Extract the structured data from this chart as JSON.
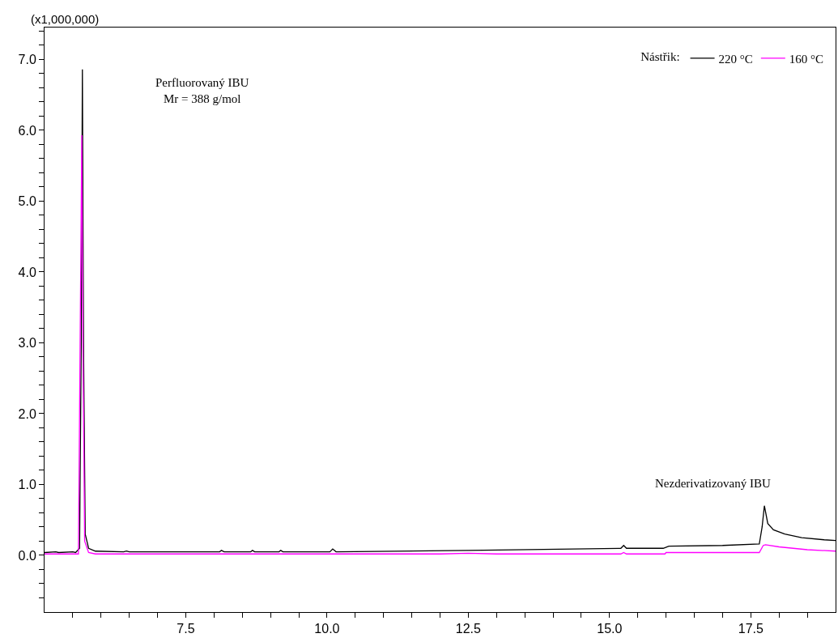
{
  "chart_data": {
    "type": "line",
    "xlim": [
      5.0,
      19.0
    ],
    "xticks": [
      {
        "value": 5.5,
        "label": null
      },
      {
        "value": 6.0,
        "label": null
      },
      {
        "value": 6.5,
        "label": null
      },
      {
        "value": 7.0,
        "label": null
      },
      {
        "value": 7.5,
        "label": "7.5"
      },
      {
        "value": 8.0,
        "label": null
      },
      {
        "value": 8.5,
        "label": null
      },
      {
        "value": 9.0,
        "label": null
      },
      {
        "value": 9.5,
        "label": null
      },
      {
        "value": 10.0,
        "label": "10.0"
      },
      {
        "value": 10.5,
        "label": null
      },
      {
        "value": 11.0,
        "label": null
      },
      {
        "value": 11.5,
        "label": null
      },
      {
        "value": 12.0,
        "label": null
      },
      {
        "value": 12.5,
        "label": "12.5"
      },
      {
        "value": 13.0,
        "label": null
      },
      {
        "value": 13.5,
        "label": null
      },
      {
        "value": 14.0,
        "label": null
      },
      {
        "value": 14.5,
        "label": null
      },
      {
        "value": 15.0,
        "label": "15.0"
      },
      {
        "value": 15.5,
        "label": null
      },
      {
        "value": 16.0,
        "label": null
      },
      {
        "value": 16.5,
        "label": null
      },
      {
        "value": 17.0,
        "label": null
      },
      {
        "value": 17.5,
        "label": "17.5"
      },
      {
        "value": 18.0,
        "label": null
      },
      {
        "value": 18.5,
        "label": null
      }
    ],
    "ylim": [
      -0.8,
      7.45
    ],
    "yticks": [
      {
        "value": -0.6,
        "label": null
      },
      {
        "value": -0.4,
        "label": null
      },
      {
        "value": -0.2,
        "label": null
      },
      {
        "value": 0,
        "label": "0.0"
      },
      {
        "value": 0.2,
        "label": null
      },
      {
        "value": 0.4,
        "label": null
      },
      {
        "value": 0.6,
        "label": null
      },
      {
        "value": 0.8,
        "label": null
      },
      {
        "value": 1,
        "label": "1.0"
      },
      {
        "value": 1.2,
        "label": null
      },
      {
        "value": 1.4,
        "label": null
      },
      {
        "value": 1.6,
        "label": null
      },
      {
        "value": 1.8,
        "label": null
      },
      {
        "value": 2,
        "label": "2.0"
      },
      {
        "value": 2.2,
        "label": null
      },
      {
        "value": 2.4,
        "label": null
      },
      {
        "value": 2.6,
        "label": null
      },
      {
        "value": 2.8,
        "label": null
      },
      {
        "value": 3,
        "label": "3.0"
      },
      {
        "value": 3.2,
        "label": null
      },
      {
        "value": 3.4,
        "label": null
      },
      {
        "value": 3.6,
        "label": null
      },
      {
        "value": 3.8,
        "label": null
      },
      {
        "value": 4,
        "label": "4.0"
      },
      {
        "value": 4.2,
        "label": null
      },
      {
        "value": 4.4,
        "label": null
      },
      {
        "value": 4.6,
        "label": null
      },
      {
        "value": 4.8,
        "label": null
      },
      {
        "value": 5,
        "label": "5.0"
      },
      {
        "value": 5.2,
        "label": null
      },
      {
        "value": 5.4,
        "label": null
      },
      {
        "value": 5.6,
        "label": null
      },
      {
        "value": 5.8,
        "label": null
      },
      {
        "value": 6,
        "label": "6.0"
      },
      {
        "value": 6.2,
        "label": null
      },
      {
        "value": 6.4,
        "label": null
      },
      {
        "value": 6.6,
        "label": null
      },
      {
        "value": 6.8,
        "label": null
      },
      {
        "value": 7,
        "label": "7.0"
      },
      {
        "value": 7.2,
        "label": null
      },
      {
        "value": 7.4,
        "label": null
      }
    ],
    "grid": false,
    "legend": "top right",
    "legend_title": "Nástřik:",
    "line_style": "solid",
    "marker": "none",
    "annotations": [
      "(x1,000,000)",
      "Perfluorovaný IBU\nMr = 388 g/mol",
      "Nezderivatizovaný IBU"
    ],
    "series": [
      {
        "name": "220 °C",
        "color": "#000000",
        "x": [
          5.0,
          5.2,
          5.25,
          5.5,
          5.55,
          5.62,
          5.65,
          5.67,
          5.69,
          5.72,
          5.78,
          5.9,
          6.4,
          6.45,
          6.5,
          8.1,
          8.13,
          8.18,
          8.65,
          8.68,
          8.72,
          9.15,
          9.18,
          9.22,
          10.05,
          10.1,
          10.16,
          12.5,
          15.2,
          15.25,
          15.3,
          15.95,
          16.05,
          17.0,
          17.65,
          17.7,
          17.74,
          17.8,
          17.9,
          18.1,
          18.4,
          18.8,
          19.0
        ],
        "values": [
          0.04,
          0.05,
          0.04,
          0.05,
          0.04,
          0.1,
          3.0,
          6.86,
          3.0,
          0.3,
          0.1,
          0.06,
          0.05,
          0.06,
          0.05,
          0.05,
          0.07,
          0.05,
          0.05,
          0.07,
          0.05,
          0.05,
          0.07,
          0.05,
          0.05,
          0.09,
          0.05,
          0.07,
          0.1,
          0.14,
          0.1,
          0.1,
          0.13,
          0.14,
          0.16,
          0.4,
          0.7,
          0.45,
          0.36,
          0.3,
          0.25,
          0.22,
          0.21
        ]
      },
      {
        "name": "160 °C",
        "color": "#ff00ff",
        "x": [
          5.0,
          5.6,
          5.63,
          5.66,
          5.68,
          5.71,
          5.78,
          5.9,
          12.0,
          12.5,
          13.0,
          15.2,
          15.25,
          15.3,
          15.98,
          16.0,
          17.65,
          17.72,
          17.76,
          18.0,
          18.5,
          19.0
        ],
        "values": [
          0.02,
          0.02,
          3.0,
          5.93,
          3.0,
          0.2,
          0.04,
          0.02,
          0.02,
          0.03,
          0.02,
          0.02,
          0.04,
          0.02,
          0.02,
          0.04,
          0.04,
          0.14,
          0.15,
          0.12,
          0.08,
          0.06
        ]
      }
    ]
  }
}
